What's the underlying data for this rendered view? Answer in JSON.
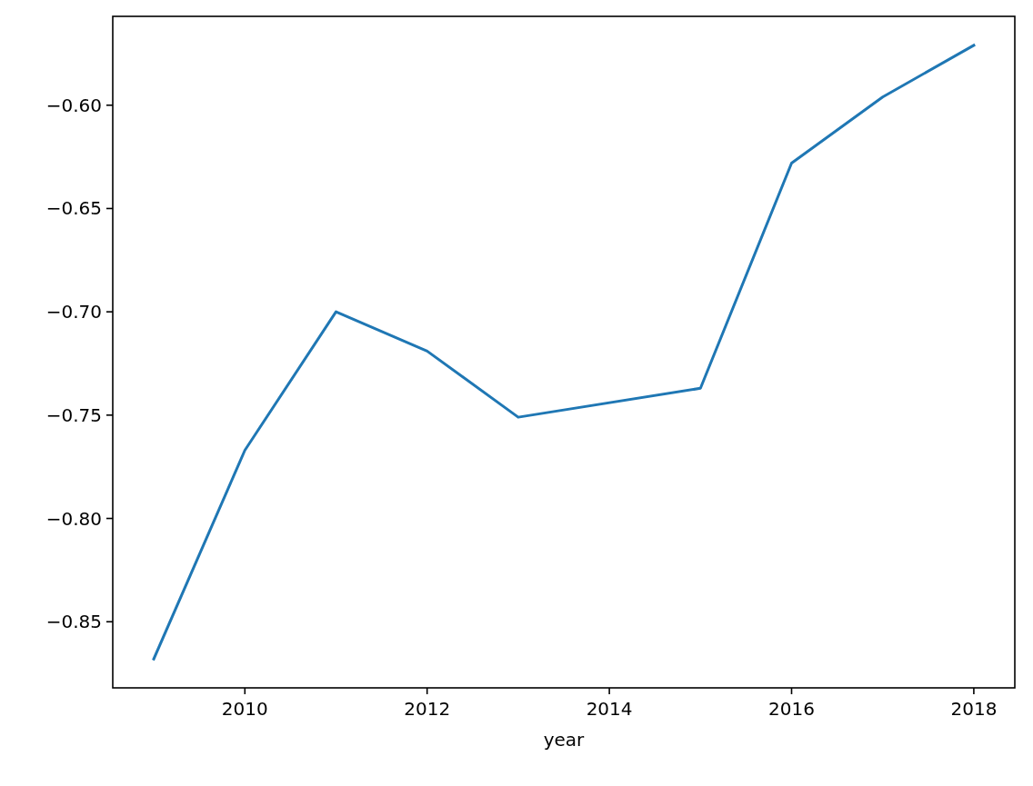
{
  "chart_data": {
    "type": "line",
    "xlabel": "year",
    "x": [
      2009,
      2010,
      2011,
      2012,
      2013,
      2015,
      2016,
      2017,
      2018
    ],
    "series": [
      {
        "color": "#1f77b4",
        "values": [
          -0.868,
          -0.767,
          -0.7,
          -0.719,
          -0.751,
          -0.737,
          -0.628,
          -0.596,
          -0.571
        ]
      }
    ],
    "xlim": [
      2008.55,
      2018.45
    ],
    "ylim": [
      -0.882,
      -0.557
    ],
    "xticks": [
      2010,
      2012,
      2014,
      2016,
      2018
    ],
    "yticks": [
      {
        "value": -0.6,
        "label": "−0.60"
      },
      {
        "value": -0.65,
        "label": "−0.65"
      },
      {
        "value": -0.7,
        "label": "−0.70"
      },
      {
        "value": -0.75,
        "label": "−0.75"
      },
      {
        "value": -0.8,
        "label": "−0.80"
      },
      {
        "value": -0.85,
        "label": "−0.85"
      }
    ],
    "line_style": "solid",
    "marker": "none",
    "grid": false
  }
}
